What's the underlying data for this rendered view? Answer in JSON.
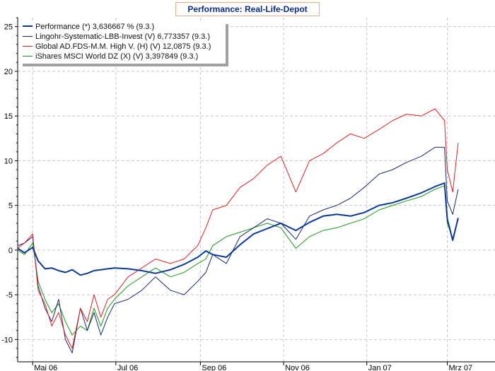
{
  "colors": {
    "background": "#ffffff",
    "grid": "#c8c8c8",
    "title_text": "#0b2a8c",
    "title_border": "#e8b08a"
  },
  "chart_data": {
    "type": "line",
    "title": "Performance: Real-Life-Depot",
    "xlabel": "",
    "ylabel": "",
    "ylim": [
      -12.5,
      26
    ],
    "yticks": [
      -10,
      -5,
      0,
      5,
      10,
      15,
      20,
      25
    ],
    "ytick_labels": [
      "-10",
      "-5",
      "0",
      "5",
      "10",
      "15",
      "20",
      "25"
    ],
    "xlim": [
      "2006-04-20",
      "2007-04-05"
    ],
    "xtick_labels": [
      "Mai 06",
      "Jul 06",
      "Sep 06",
      "Nov 06",
      "Jan 07",
      "Mrz 07"
    ],
    "xtick_dates": [
      "2006-05-01",
      "2006-07-01",
      "2006-09-01",
      "2006-11-01",
      "2007-01-01",
      "2007-03-01"
    ],
    "grid": true,
    "legend_position": "top-left",
    "series": [
      {
        "name": "Performance (*) 3,636667 % (9.3.)",
        "color": "#0a3a96",
        "width": 2,
        "x": [
          "2006-04-20",
          "2006-04-25",
          "2006-05-01",
          "2006-05-05",
          "2006-05-10",
          "2006-05-15",
          "2006-05-20",
          "2006-05-25",
          "2006-05-30",
          "2006-06-05",
          "2006-06-10",
          "2006-06-15",
          "2006-06-20",
          "2006-06-25",
          "2006-06-30",
          "2006-07-10",
          "2006-07-20",
          "2006-07-30",
          "2006-08-10",
          "2006-08-20",
          "2006-08-30",
          "2006-09-05",
          "2006-09-10",
          "2006-09-20",
          "2006-09-30",
          "2006-10-10",
          "2006-10-20",
          "2006-10-30",
          "2006-11-10",
          "2006-11-20",
          "2006-11-30",
          "2006-12-10",
          "2006-12-20",
          "2006-12-30",
          "2007-01-10",
          "2007-01-20",
          "2007-01-30",
          "2007-02-10",
          "2007-02-20",
          "2007-02-27",
          "2007-03-01",
          "2007-03-05",
          "2007-03-09"
        ],
        "values": [
          0.2,
          -0.3,
          0.3,
          -1.2,
          -2.1,
          -2.0,
          -2.3,
          -2.5,
          -2.2,
          -2.8,
          -2.6,
          -2.3,
          -2.2,
          -2.1,
          -2.0,
          -2.1,
          -2.3,
          -2.6,
          -2.2,
          -1.6,
          -0.8,
          -0.1,
          -0.5,
          -0.8,
          0.6,
          1.8,
          2.4,
          3.0,
          2.2,
          3.1,
          3.8,
          4.0,
          3.8,
          4.2,
          5.0,
          5.3,
          5.8,
          6.4,
          7.1,
          7.5,
          3.5,
          1.1,
          3.6
        ]
      },
      {
        "name": "Lingohr-Systematic-LBB-Invest (V) 6,773357 (9.3.)",
        "color": "#1a2a6a",
        "width": 1,
        "x": [
          "2006-04-20",
          "2006-04-25",
          "2006-05-01",
          "2006-05-05",
          "2006-05-10",
          "2006-05-15",
          "2006-05-20",
          "2006-05-25",
          "2006-05-30",
          "2006-06-05",
          "2006-06-10",
          "2006-06-15",
          "2006-06-20",
          "2006-06-25",
          "2006-06-30",
          "2006-07-10",
          "2006-07-20",
          "2006-07-30",
          "2006-08-10",
          "2006-08-20",
          "2006-08-30",
          "2006-09-05",
          "2006-09-10",
          "2006-09-20",
          "2006-09-30",
          "2006-10-10",
          "2006-10-20",
          "2006-10-30",
          "2006-11-10",
          "2006-11-20",
          "2006-11-30",
          "2006-12-10",
          "2006-12-20",
          "2006-12-30",
          "2007-01-10",
          "2007-01-20",
          "2007-01-30",
          "2007-02-10",
          "2007-02-20",
          "2007-02-27",
          "2007-03-01",
          "2007-03-05",
          "2007-03-09"
        ],
        "values": [
          0.5,
          0.8,
          1.5,
          -4.0,
          -6.5,
          -8.0,
          -5.5,
          -10.0,
          -11.5,
          -6.5,
          -9.0,
          -7.0,
          -9.5,
          -7.5,
          -6.0,
          -5.5,
          -4.5,
          -3.0,
          -4.5,
          -5.0,
          -3.5,
          -2.5,
          -0.5,
          -1.5,
          1.5,
          2.5,
          3.5,
          3.0,
          1.2,
          3.8,
          4.5,
          5.0,
          5.8,
          7.0,
          8.5,
          9.0,
          9.8,
          10.5,
          11.5,
          11.5,
          5.5,
          4.0,
          6.8
        ]
      },
      {
        "name": "Global AD.FDS-M.M. High V. (H) (V) 12,0875 (9.3.)",
        "color": "#e02020",
        "width": 1,
        "x": [
          "2006-04-20",
          "2006-04-25",
          "2006-05-01",
          "2006-05-05",
          "2006-05-10",
          "2006-05-15",
          "2006-05-20",
          "2006-05-25",
          "2006-05-30",
          "2006-06-05",
          "2006-06-10",
          "2006-06-15",
          "2006-06-20",
          "2006-06-25",
          "2006-06-30",
          "2006-07-10",
          "2006-07-20",
          "2006-07-30",
          "2006-08-10",
          "2006-08-20",
          "2006-08-30",
          "2006-09-05",
          "2006-09-10",
          "2006-09-20",
          "2006-09-30",
          "2006-10-10",
          "2006-10-20",
          "2006-10-30",
          "2006-11-10",
          "2006-11-20",
          "2006-11-30",
          "2006-12-10",
          "2006-12-20",
          "2006-12-30",
          "2007-01-10",
          "2007-01-20",
          "2007-01-30",
          "2007-02-10",
          "2007-02-20",
          "2007-02-27",
          "2007-03-01",
          "2007-03-05",
          "2007-03-09"
        ],
        "values": [
          0.2,
          0.8,
          1.8,
          -4.5,
          -6.0,
          -8.5,
          -7.0,
          -9.5,
          -11.0,
          -6.5,
          -8.0,
          -5.0,
          -7.5,
          -5.5,
          -5.0,
          -3.0,
          -2.0,
          -1.0,
          -1.5,
          -1.0,
          0.5,
          2.5,
          4.5,
          5.0,
          7.0,
          8.0,
          9.5,
          10.5,
          6.5,
          10.0,
          10.8,
          12.0,
          13.0,
          12.5,
          13.5,
          14.5,
          15.2,
          15.0,
          15.8,
          14.5,
          9.0,
          6.5,
          12.0
        ]
      },
      {
        "name": "iShares MSCI World DZ (X) (V) 3,397849 (9.3.)",
        "color": "#1a9a1a",
        "width": 1,
        "x": [
          "2006-04-20",
          "2006-04-25",
          "2006-05-01",
          "2006-05-05",
          "2006-05-10",
          "2006-05-15",
          "2006-05-20",
          "2006-05-25",
          "2006-05-30",
          "2006-06-05",
          "2006-06-10",
          "2006-06-15",
          "2006-06-20",
          "2006-06-25",
          "2006-06-30",
          "2006-07-10",
          "2006-07-20",
          "2006-07-30",
          "2006-08-10",
          "2006-08-20",
          "2006-08-30",
          "2006-09-05",
          "2006-09-10",
          "2006-09-20",
          "2006-09-30",
          "2006-10-10",
          "2006-10-20",
          "2006-10-30",
          "2006-11-10",
          "2006-11-20",
          "2006-11-30",
          "2006-12-10",
          "2006-12-20",
          "2006-12-30",
          "2007-01-10",
          "2007-01-20",
          "2007-01-30",
          "2007-02-10",
          "2007-02-20",
          "2007-02-27",
          "2007-03-01",
          "2007-03-05",
          "2007-03-09"
        ],
        "values": [
          0.0,
          -0.5,
          0.8,
          -3.5,
          -5.5,
          -7.0,
          -6.0,
          -8.0,
          -9.5,
          -8.5,
          -9.0,
          -6.5,
          -8.5,
          -6.5,
          -5.5,
          -4.0,
          -3.0,
          -2.0,
          -3.0,
          -2.5,
          -1.5,
          -1.0,
          0.5,
          1.5,
          2.0,
          2.5,
          3.0,
          2.5,
          0.2,
          1.5,
          2.2,
          2.5,
          3.0,
          3.5,
          4.5,
          5.0,
          5.5,
          6.0,
          6.8,
          7.2,
          3.0,
          1.3,
          3.4
        ]
      }
    ]
  }
}
